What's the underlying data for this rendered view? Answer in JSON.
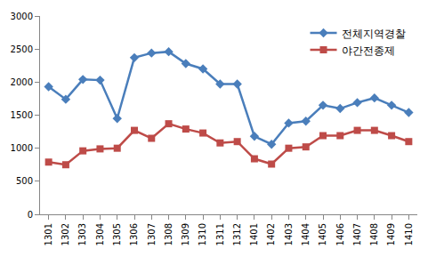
{
  "chart_data": {
    "type": "line",
    "categories": [
      "1301",
      "1302",
      "1303",
      "1304",
      "1305",
      "1306",
      "1307",
      "1308",
      "1309",
      "1310",
      "1311",
      "1312",
      "1401",
      "1402",
      "1403",
      "1404",
      "1405",
      "1406",
      "1407",
      "1408",
      "1409",
      "1410"
    ],
    "series": [
      {
        "name": "전체지역경찰",
        "color": "#4a7ebb",
        "marker": "diamond",
        "values": [
          1930,
          1740,
          2040,
          2030,
          1450,
          2370,
          2440,
          2460,
          2280,
          2200,
          1970,
          1970,
          1180,
          1060,
          1380,
          1410,
          1650,
          1600,
          1690,
          1760,
          1650,
          1540
        ]
      },
      {
        "name": "야간전종제",
        "color": "#be4b48",
        "marker": "square",
        "values": [
          790,
          750,
          960,
          990,
          1000,
          1270,
          1150,
          1370,
          1290,
          1230,
          1080,
          1100,
          840,
          760,
          1000,
          1020,
          1190,
          1190,
          1270,
          1270,
          1190,
          1100
        ]
      }
    ],
    "ylim": [
      0,
      3000
    ],
    "yticks": [
      0,
      500,
      1000,
      1500,
      2000,
      2500,
      3000
    ],
    "grid": false,
    "legend": "top right"
  }
}
